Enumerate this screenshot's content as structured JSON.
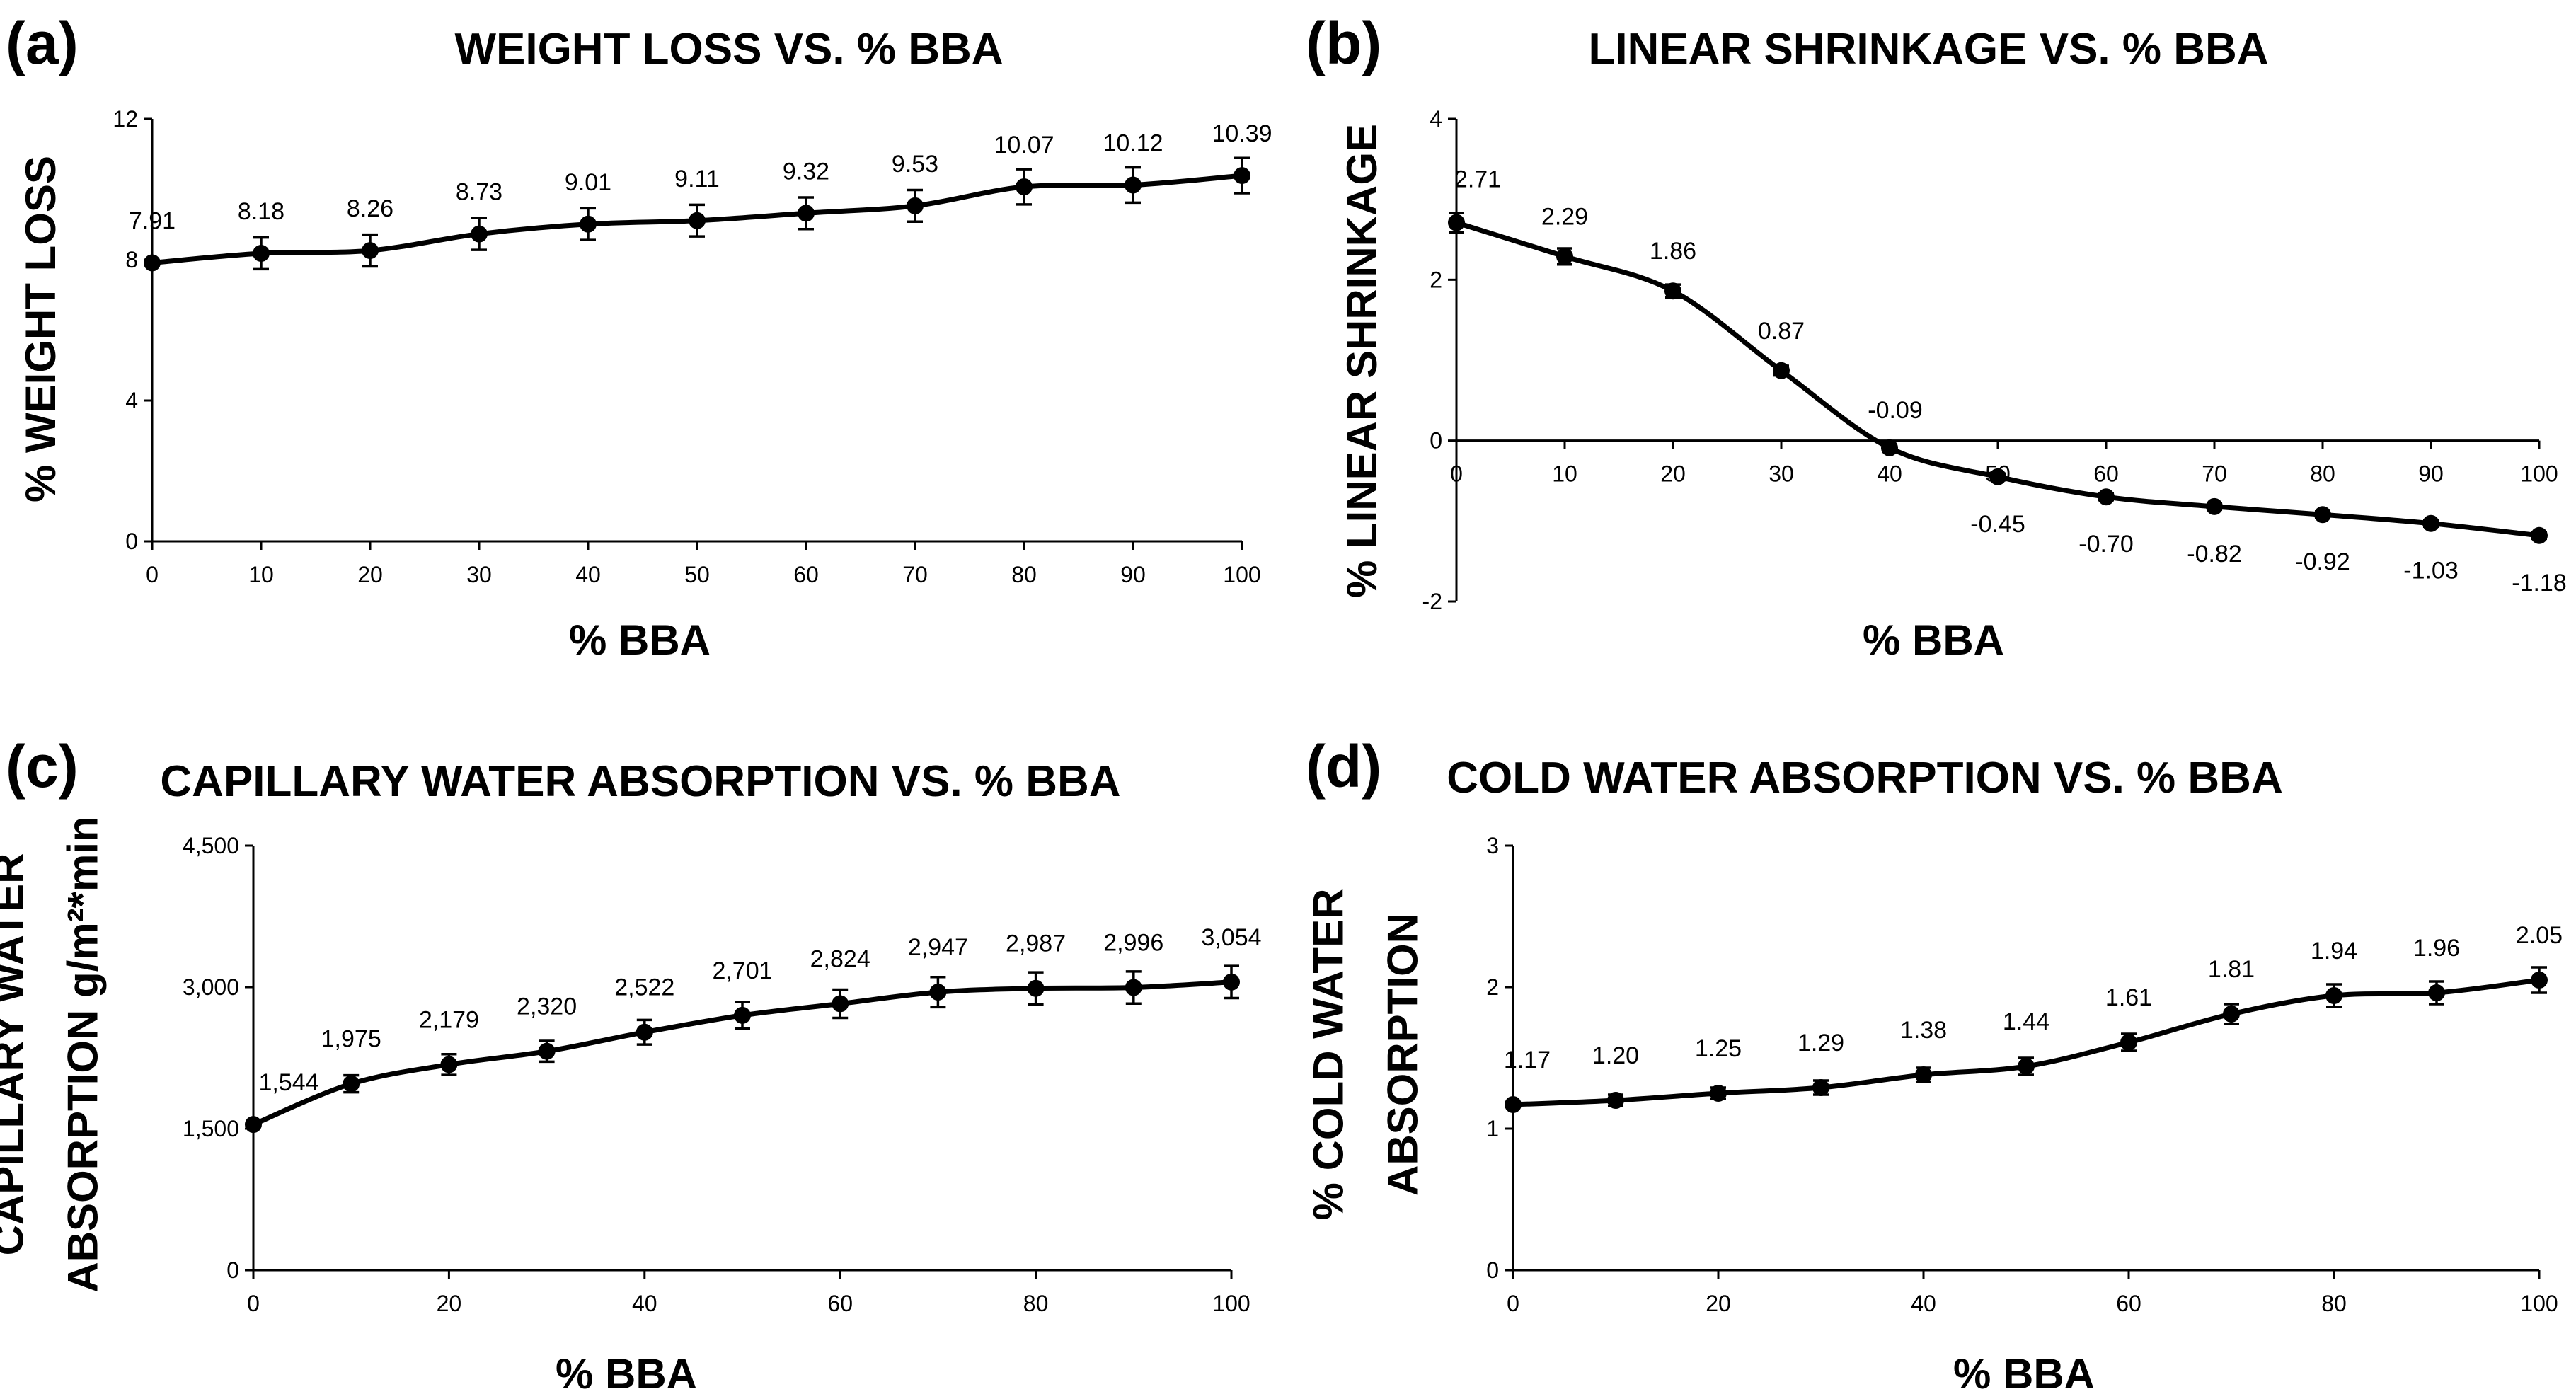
{
  "chart_data": [
    {
      "id": "a",
      "panel_label": "(a)",
      "type": "line",
      "title": "WEIGHT LOSS VS. % BBA",
      "xlabel": "%  BBA",
      "ylabel": [
        "% WEIGHT LOSS"
      ],
      "x": [
        0,
        10,
        20,
        30,
        40,
        50,
        60,
        70,
        80,
        90,
        100
      ],
      "values": [
        7.91,
        8.18,
        8.26,
        8.73,
        9.01,
        9.11,
        9.32,
        9.53,
        10.07,
        10.12,
        10.39
      ],
      "labels": [
        "7.91",
        "8.18",
        "8.26",
        "8.73",
        "9.01",
        "9.11",
        "9.32",
        "9.53",
        "10.07",
        "10.12",
        "10.39"
      ],
      "errors": [
        0.0,
        0.45,
        0.45,
        0.45,
        0.45,
        0.45,
        0.45,
        0.45,
        0.5,
        0.5,
        0.5
      ],
      "xticks": [
        0,
        10,
        20,
        30,
        40,
        50,
        60,
        70,
        80,
        90,
        100
      ],
      "xtick_labels": [
        "0",
        "10",
        "20",
        "30",
        "40",
        "50",
        "60",
        "70",
        "80",
        "90",
        "100"
      ],
      "yticks": [
        0,
        4,
        8,
        12
      ],
      "ytick_labels": [
        "0",
        "4",
        "8",
        "12"
      ],
      "xlim": [
        0,
        100
      ],
      "ylim": [
        0,
        12
      ],
      "grid": false
    },
    {
      "id": "b",
      "panel_label": "(b)",
      "type": "line",
      "title": "LINEAR SHRINKAGE VS. % BBA",
      "xlabel": "% BBA",
      "ylabel": [
        "% LINEAR SHRINKAGE"
      ],
      "x": [
        0,
        10,
        20,
        30,
        40,
        50,
        60,
        70,
        80,
        90,
        100
      ],
      "values": [
        2.71,
        2.29,
        1.86,
        0.87,
        -0.09,
        -0.45,
        -0.7,
        -0.82,
        -0.92,
        -1.03,
        -1.18
      ],
      "labels": [
        "2.71",
        "2.29",
        "1.86",
        "0.87",
        "-0.09",
        "-0.45",
        "-0.70",
        "-0.82",
        "-0.92",
        "-1.03",
        "-1.18"
      ],
      "errors": [
        0.12,
        0.1,
        0.08,
        0.06,
        0.05,
        0.04,
        0.04,
        0.04,
        0.04,
        0.04,
        0.04
      ],
      "xticks": [
        0,
        10,
        20,
        30,
        40,
        50,
        60,
        70,
        80,
        90,
        100
      ],
      "xtick_labels": [
        "0",
        "10",
        "20",
        "30",
        "40",
        "50",
        "60",
        "70",
        "80",
        "90",
        "100"
      ],
      "yticks": [
        -2,
        0,
        2,
        4
      ],
      "ytick_labels": [
        "-2",
        "0",
        "2",
        "4"
      ],
      "xlim": [
        0,
        100
      ],
      "ylim": [
        -2,
        4
      ],
      "grid": false
    },
    {
      "id": "c",
      "panel_label": "(c)",
      "type": "line",
      "title": "CAPILLARY WATER ABSORPTION VS. % BBA",
      "xlabel": "%  BBA",
      "ylabel": [
        "CAPILLARY WATER",
        "ABSORPTION g/m²*min"
      ],
      "x": [
        0,
        10,
        20,
        30,
        40,
        50,
        60,
        70,
        80,
        90,
        100
      ],
      "values": [
        1544,
        1975,
        2179,
        2320,
        2522,
        2701,
        2824,
        2947,
        2987,
        2996,
        3054
      ],
      "labels": [
        "1,544",
        "1,975",
        "2,179",
        "2,320",
        "2,522",
        "2,701",
        "2,824",
        "2,947",
        "2,987",
        "2,996",
        "3,054"
      ],
      "errors": [
        0,
        90,
        110,
        110,
        130,
        140,
        150,
        160,
        170,
        170,
        170
      ],
      "xticks": [
        0,
        20,
        40,
        60,
        80,
        100
      ],
      "xtick_labels": [
        "0",
        "20",
        "40",
        "60",
        "80",
        "100"
      ],
      "yticks": [
        0,
        1500,
        3000,
        4500
      ],
      "ytick_labels": [
        "0",
        "1,500",
        "3,000",
        "4,500"
      ],
      "xlim": [
        0,
        100
      ],
      "ylim": [
        0,
        4500
      ],
      "grid": false
    },
    {
      "id": "d",
      "panel_label": "(d)",
      "type": "line",
      "title": "COLD WATER ABSORPTION VS. % BBA",
      "xlabel": "% BBA",
      "ylabel": [
        "% COLD WATER",
        "ABSORPTION"
      ],
      "x": [
        0,
        10,
        20,
        30,
        40,
        50,
        60,
        70,
        80,
        90,
        100
      ],
      "values": [
        1.17,
        1.2,
        1.25,
        1.29,
        1.38,
        1.44,
        1.61,
        1.81,
        1.94,
        1.96,
        2.05
      ],
      "labels": [
        "1.17",
        "1.20",
        "1.25",
        "1.29",
        "1.38",
        "1.44",
        "1.61",
        "1.81",
        "1.94",
        "1.96",
        "2.05"
      ],
      "errors": [
        0,
        0.04,
        0.04,
        0.05,
        0.05,
        0.06,
        0.06,
        0.07,
        0.08,
        0.08,
        0.09
      ],
      "xticks": [
        0,
        20,
        40,
        60,
        80,
        100
      ],
      "xtick_labels": [
        "0",
        "20",
        "40",
        "60",
        "80",
        "100"
      ],
      "yticks": [
        0,
        1,
        2,
        3
      ],
      "ytick_labels": [
        "0",
        "1",
        "2",
        "3"
      ],
      "xlim": [
        0,
        100
      ],
      "ylim": [
        0,
        3
      ],
      "grid": false
    }
  ]
}
